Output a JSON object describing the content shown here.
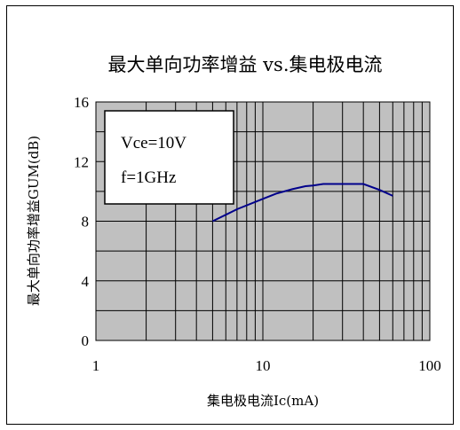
{
  "chart_data": {
    "type": "line",
    "title": "最大单向功率增益 vs.集电极电流",
    "xlabel": "集电极电流Ic(mA)",
    "ylabel": "最大单向功率增益GUM(dB)",
    "x_scale": "log",
    "xlim": [
      1,
      100
    ],
    "ylim": [
      0,
      16
    ],
    "x_ticks": [
      1,
      10,
      100
    ],
    "y_ticks": [
      0,
      4,
      8,
      12,
      16
    ],
    "x_tick_labels": [
      "1",
      "10",
      "100"
    ],
    "y_tick_labels": [
      "0",
      "4",
      "8",
      "12",
      "16"
    ],
    "grid": true,
    "plot_background": "#c0c0c0",
    "line_color": "#00008b",
    "annotations": [
      "Vce=10V",
      "f=1GHz"
    ],
    "series": [
      {
        "x": [
          5,
          7,
          10,
          12,
          15,
          18,
          20,
          23,
          30,
          40,
          50,
          60
        ],
        "y": [
          8.0,
          8.8,
          9.5,
          9.85,
          10.15,
          10.35,
          10.4,
          10.5,
          10.5,
          10.5,
          10.1,
          9.7
        ]
      }
    ]
  }
}
